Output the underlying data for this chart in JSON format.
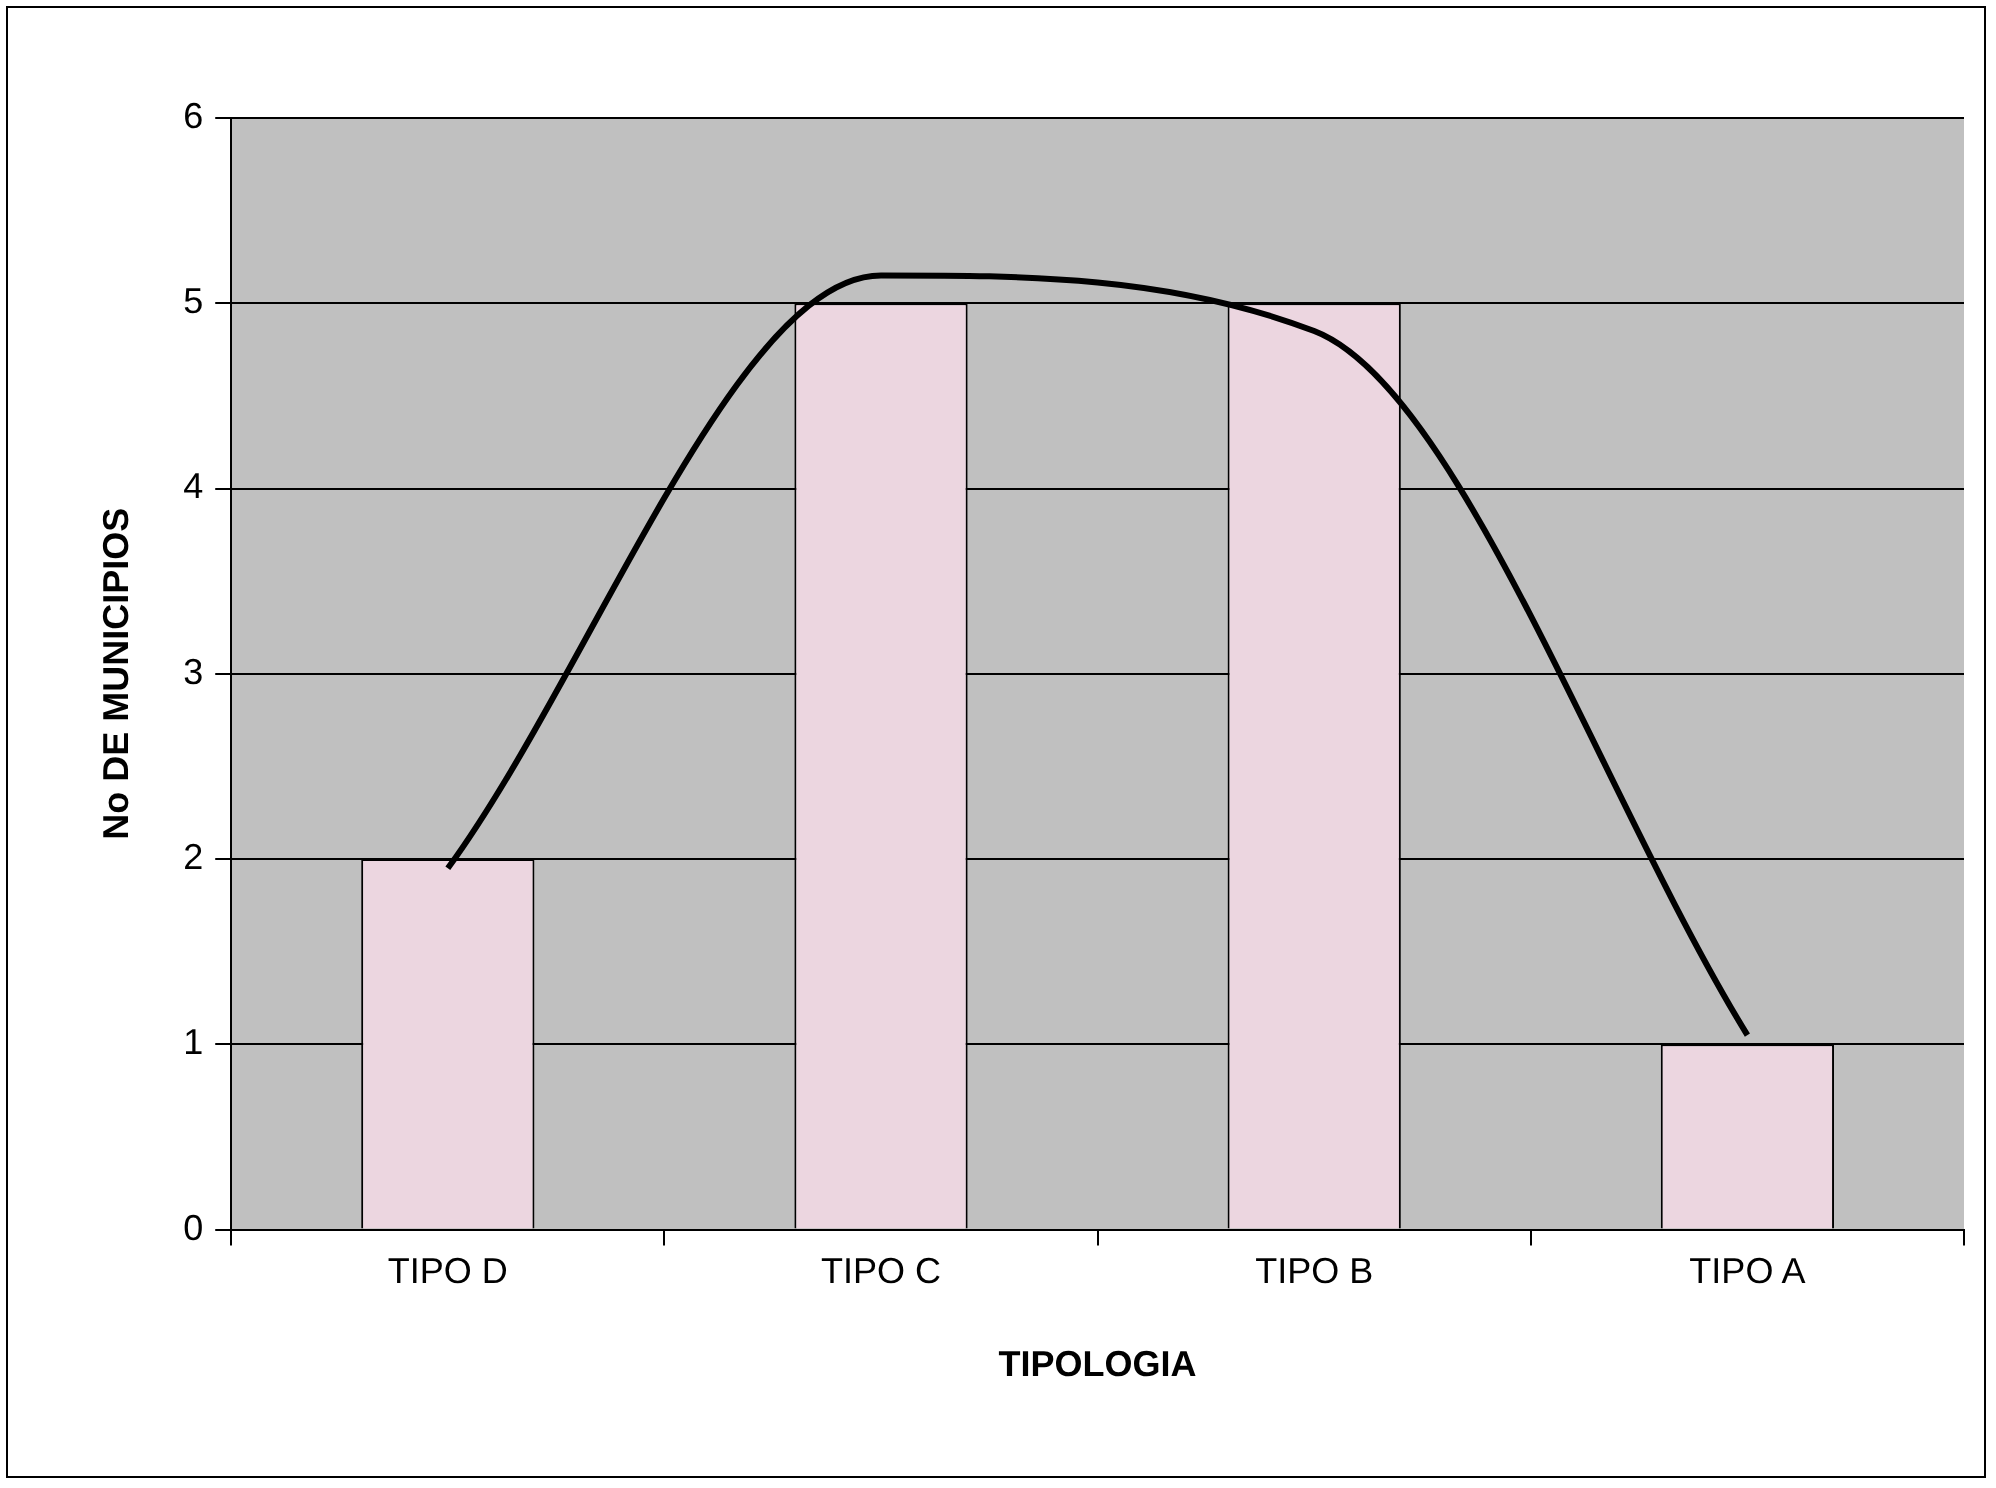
{
  "chart_data": {
    "type": "bar",
    "xlabel": "TIPOLOGIA",
    "ylabel": "No DE MUNICIPIOS",
    "categories": [
      "TIPO D",
      "TIPO C",
      "TIPO B",
      "TIPO A"
    ],
    "series": [
      {
        "color": "#ecd6e0",
        "values": [
          2,
          5,
          5,
          1
        ]
      },
      {
        "type": "line",
        "color": "#000000",
        "values": [
          1.95,
          5.15,
          4.85,
          1.05
        ]
      }
    ],
    "ylim": [
      0,
      6
    ],
    "yticks": [
      0,
      1,
      2,
      3,
      4,
      5,
      6
    ],
    "grid": "y",
    "legend": false,
    "marker": "none"
  }
}
